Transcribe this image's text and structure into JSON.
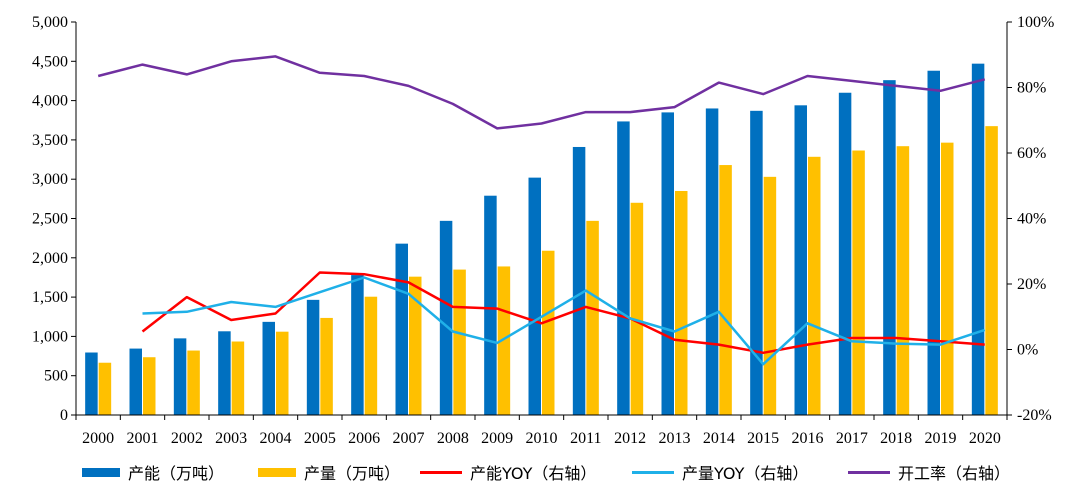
{
  "chart_data": {
    "type": "bar+line",
    "categories": [
      "2000",
      "2001",
      "2002",
      "2003",
      "2004",
      "2005",
      "2006",
      "2007",
      "2008",
      "2009",
      "2010",
      "2011",
      "2012",
      "2013",
      "2014",
      "2015",
      "2016",
      "2017",
      "2018",
      "2019",
      "2020"
    ],
    "y_left": {
      "ticks": [
        "0",
        "500",
        "1,000",
        "1,500",
        "2,000",
        "2,500",
        "3,000",
        "3,500",
        "4,000",
        "4,500",
        "5,000"
      ],
      "range": [
        0,
        5000
      ]
    },
    "y_right": {
      "ticks": [
        "-20%",
        "0%",
        "20%",
        "40%",
        "60%",
        "80%",
        "100%"
      ],
      "range": [
        -20,
        100
      ]
    },
    "bar_series": [
      {
        "name": "产能（万吨）",
        "color": "#0070C0",
        "values": [
          795,
          845,
          975,
          1065,
          1185,
          1465,
          1780,
          2180,
          2470,
          2790,
          3020,
          3410,
          3735,
          3850,
          3900,
          3870,
          3940,
          4100,
          4260,
          4380,
          4470
        ]
      },
      {
        "name": "产量（万吨）",
        "color": "#FFC000",
        "values": [
          665,
          735,
          820,
          935,
          1060,
          1235,
          1505,
          1760,
          1850,
          1890,
          2090,
          2470,
          2700,
          2850,
          3180,
          3030,
          3285,
          3365,
          3420,
          3465,
          3675
        ]
      }
    ],
    "line_series": [
      {
        "name": "产能YOY（右轴）",
        "color": "#FF0000",
        "values": [
          null,
          5.5,
          16.0,
          9.0,
          11.0,
          23.5,
          23.0,
          20.5,
          13.0,
          12.5,
          8.0,
          13.0,
          9.5,
          3.0,
          1.5,
          -1.0,
          1.5,
          3.5,
          3.5,
          2.5,
          1.5
        ]
      },
      {
        "name": "产量YOY（右轴）",
        "color": "#1FB0E8",
        "values": [
          null,
          11.0,
          11.5,
          14.5,
          13.0,
          17.5,
          22.0,
          17.0,
          5.5,
          2.0,
          10.0,
          18.0,
          9.5,
          5.5,
          11.5,
          -4.5,
          8.0,
          2.5,
          1.8,
          1.5,
          6.0
        ]
      },
      {
        "name": "开工率（右轴）",
        "color": "#7030A0",
        "values": [
          83.5,
          87.0,
          84.0,
          88.0,
          89.5,
          84.5,
          83.5,
          80.5,
          75.0,
          67.5,
          69.0,
          72.5,
          72.5,
          74.0,
          81.5,
          78.0,
          83.5,
          82.0,
          80.5,
          79.0,
          82.5
        ]
      }
    ],
    "legend_placement": "bottom"
  }
}
